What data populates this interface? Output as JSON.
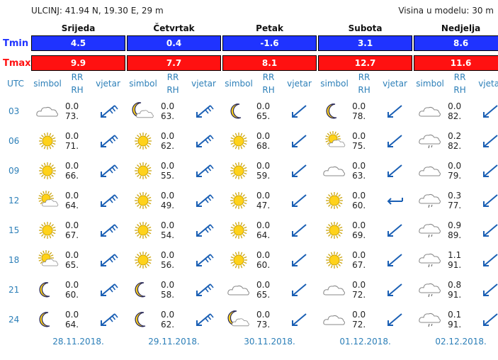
{
  "header": {
    "location": "ULCINJ: 41.94 N, 19.30 E, 29 m",
    "model_height": "Visina u modelu: 30 m"
  },
  "labels": {
    "tmin": "Tmin",
    "tmax": "Tmax",
    "utc": "UTC",
    "symbol": "simbol",
    "rr": "RR",
    "rh": "RH",
    "wind": "vjetar"
  },
  "days": [
    {
      "name": "Srijeda",
      "tmin": "4.5",
      "tmax": "9.9",
      "date": "28.11.2018.",
      "rows": [
        {
          "sym": "cloud",
          "rr": "0.0",
          "rh": "73.",
          "wind": "nne"
        },
        {
          "sym": "sun",
          "rr": "0.0",
          "rh": "71.",
          "wind": "nne"
        },
        {
          "sym": "sun",
          "rr": "0.0",
          "rh": "66.",
          "wind": "nne"
        },
        {
          "sym": "suncloud",
          "rr": "0.0",
          "rh": "64.",
          "wind": "nne"
        },
        {
          "sym": "sun",
          "rr": "0.0",
          "rh": "67.",
          "wind": "nne"
        },
        {
          "sym": "suncloud",
          "rr": "0.0",
          "rh": "65.",
          "wind": "nne"
        },
        {
          "sym": "moon",
          "rr": "0.0",
          "rh": "60.",
          "wind": "nne"
        },
        {
          "sym": "moon",
          "rr": "0.0",
          "rh": "64.",
          "wind": "nne"
        }
      ]
    },
    {
      "name": "Četvrtak",
      "tmin": "0.4",
      "tmax": "7.7",
      "date": "29.11.2018.",
      "rows": [
        {
          "sym": "mooncloud",
          "rr": "0.0",
          "rh": "63.",
          "wind": "nne"
        },
        {
          "sym": "sun",
          "rr": "0.0",
          "rh": "62.",
          "wind": "nne"
        },
        {
          "sym": "sun",
          "rr": "0.0",
          "rh": "55.",
          "wind": "nne"
        },
        {
          "sym": "sun",
          "rr": "0.0",
          "rh": "49.",
          "wind": "nne"
        },
        {
          "sym": "sun",
          "rr": "0.0",
          "rh": "54.",
          "wind": "nne"
        },
        {
          "sym": "sun",
          "rr": "0.0",
          "rh": "56.",
          "wind": "nne"
        },
        {
          "sym": "moon",
          "rr": "0.0",
          "rh": "58.",
          "wind": "nne"
        },
        {
          "sym": "moon",
          "rr": "0.0",
          "rh": "62.",
          "wind": "nne"
        }
      ]
    },
    {
      "name": "Petak",
      "tmin": "-1.6",
      "tmax": "8.1",
      "date": "30.11.2018.",
      "rows": [
        {
          "sym": "moon",
          "rr": "0.0",
          "rh": "65.",
          "wind": "ne"
        },
        {
          "sym": "sun",
          "rr": "0.0",
          "rh": "68.",
          "wind": "ne"
        },
        {
          "sym": "sun",
          "rr": "0.0",
          "rh": "59.",
          "wind": "ne"
        },
        {
          "sym": "sun",
          "rr": "0.0",
          "rh": "47.",
          "wind": "ne"
        },
        {
          "sym": "sun",
          "rr": "0.0",
          "rh": "64.",
          "wind": "ne"
        },
        {
          "sym": "sun",
          "rr": "0.0",
          "rh": "60.",
          "wind": "ne"
        },
        {
          "sym": "cloud",
          "rr": "0.0",
          "rh": "65.",
          "wind": "ne"
        },
        {
          "sym": "mooncloud",
          "rr": "0.0",
          "rh": "73.",
          "wind": "ne"
        }
      ]
    },
    {
      "name": "Subota",
      "tmin": "3.1",
      "tmax": "12.7",
      "date": "01.12.2018.",
      "rows": [
        {
          "sym": "moon",
          "rr": "0.0",
          "rh": "78.",
          "wind": "ne"
        },
        {
          "sym": "suncloud",
          "rr": "0.0",
          "rh": "75.",
          "wind": "ne"
        },
        {
          "sym": "cloud",
          "rr": "0.0",
          "rh": "63.",
          "wind": "ne"
        },
        {
          "sym": "sun",
          "rr": "0.0",
          "rh": "60.",
          "wind": "e"
        },
        {
          "sym": "sun",
          "rr": "0.0",
          "rh": "69.",
          "wind": "ne"
        },
        {
          "sym": "sun",
          "rr": "0.0",
          "rh": "67.",
          "wind": "ne"
        },
        {
          "sym": "cloud",
          "rr": "0.0",
          "rh": "72.",
          "wind": "ne"
        },
        {
          "sym": "cloud",
          "rr": "0.0",
          "rh": "72.",
          "wind": "ne"
        }
      ]
    },
    {
      "name": "Nedjelja",
      "tmin": "8.6",
      "tmax": "11.6",
      "date": "02.12.2018.",
      "rows": [
        {
          "sym": "cloud",
          "rr": "0.0",
          "rh": "82.",
          "wind": "ne"
        },
        {
          "sym": "raincloud",
          "rr": "0.2",
          "rh": "82.",
          "wind": "ne"
        },
        {
          "sym": "cloud",
          "rr": "0.0",
          "rh": "79.",
          "wind": "ne"
        },
        {
          "sym": "raincloud",
          "rr": "0.3",
          "rh": "77.",
          "wind": "ne"
        },
        {
          "sym": "raincloud",
          "rr": "0.9",
          "rh": "89.",
          "wind": "ne"
        },
        {
          "sym": "raincloud",
          "rr": "1.1",
          "rh": "91.",
          "wind": "ne"
        },
        {
          "sym": "raincloud",
          "rr": "0.8",
          "rh": "91.",
          "wind": "ne"
        },
        {
          "sym": "raincloud",
          "rr": "0.1",
          "rh": "91.",
          "wind": "ne"
        }
      ]
    }
  ],
  "hours": [
    "03",
    "06",
    "09",
    "12",
    "15",
    "18",
    "21",
    "24"
  ]
}
